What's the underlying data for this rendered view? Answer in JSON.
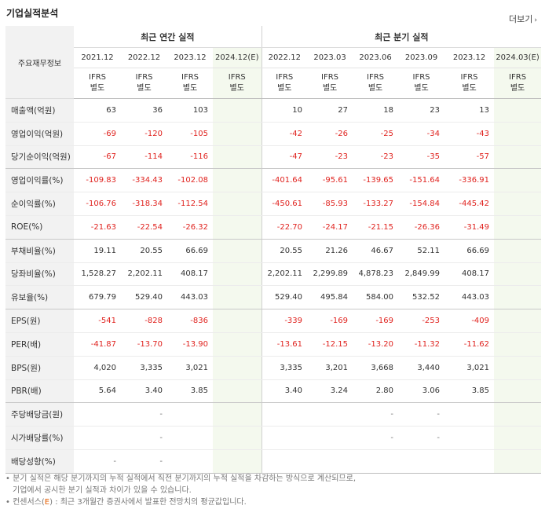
{
  "section_title": "기업실적분석",
  "more_label": "더보기",
  "more_arrow": "›",
  "label_header": "주요재무정보",
  "group_annual": "최근 연간 실적",
  "group_quarter": "최근 분기 실적",
  "periods": [
    {
      "label": "2021.12",
      "est": false
    },
    {
      "label": "2022.12",
      "est": false
    },
    {
      "label": "2023.12",
      "est": false
    },
    {
      "label": "2024.12(E)",
      "est": true
    },
    {
      "label": "2022.12",
      "est": false
    },
    {
      "label": "2023.03",
      "est": false
    },
    {
      "label": "2023.06",
      "est": false
    },
    {
      "label": "2023.09",
      "est": false
    },
    {
      "label": "2023.12",
      "est": false
    },
    {
      "label": "2024.03(E)",
      "est": true
    }
  ],
  "ifrs_line1": "IFRS",
  "ifrs_line2": "별도",
  "rows": [
    {
      "label": "매출액(억원)",
      "values": [
        "63",
        "36",
        "103",
        "",
        "10",
        "27",
        "18",
        "23",
        "13",
        ""
      ],
      "group_end": false
    },
    {
      "label": "영업이익(억원)",
      "values": [
        "-69",
        "-120",
        "-105",
        "",
        "-42",
        "-26",
        "-25",
        "-34",
        "-43",
        ""
      ],
      "group_end": false
    },
    {
      "label": "당기순이익(억원)",
      "values": [
        "-67",
        "-114",
        "-116",
        "",
        "-47",
        "-23",
        "-23",
        "-35",
        "-57",
        ""
      ],
      "group_end": true
    },
    {
      "label": "영업이익률(%)",
      "values": [
        "-109.83",
        "-334.43",
        "-102.08",
        "",
        "-401.64",
        "-95.61",
        "-139.65",
        "-151.64",
        "-336.91",
        ""
      ],
      "group_end": false
    },
    {
      "label": "순이익률(%)",
      "values": [
        "-106.76",
        "-318.34",
        "-112.54",
        "",
        "-450.61",
        "-85.93",
        "-133.27",
        "-154.84",
        "-445.42",
        ""
      ],
      "group_end": false
    },
    {
      "label": "ROE(%)",
      "values": [
        "-21.63",
        "-22.54",
        "-26.32",
        "",
        "-22.70",
        "-24.17",
        "-21.15",
        "-26.36",
        "-31.49",
        ""
      ],
      "group_end": true
    },
    {
      "label": "부채비율(%)",
      "values": [
        "19.11",
        "20.55",
        "66.69",
        "",
        "20.55",
        "21.26",
        "46.67",
        "52.11",
        "66.69",
        ""
      ],
      "group_end": false
    },
    {
      "label": "당좌비율(%)",
      "values": [
        "1,528.27",
        "2,202.11",
        "408.17",
        "",
        "2,202.11",
        "2,299.89",
        "4,878.23",
        "2,849.99",
        "408.17",
        ""
      ],
      "group_end": false
    },
    {
      "label": "유보율(%)",
      "values": [
        "679.79",
        "529.40",
        "443.03",
        "",
        "529.40",
        "495.84",
        "584.00",
        "532.52",
        "443.03",
        ""
      ],
      "group_end": true
    },
    {
      "label": "EPS(원)",
      "values": [
        "-541",
        "-828",
        "-836",
        "",
        "-339",
        "-169",
        "-169",
        "-253",
        "-409",
        ""
      ],
      "group_end": false
    },
    {
      "label": "PER(배)",
      "values": [
        "-41.87",
        "-13.70",
        "-13.90",
        "",
        "-13.61",
        "-12.15",
        "-13.20",
        "-11.32",
        "-11.62",
        ""
      ],
      "group_end": false
    },
    {
      "label": "BPS(원)",
      "values": [
        "4,020",
        "3,335",
        "3,021",
        "",
        "3,335",
        "3,201",
        "3,668",
        "3,440",
        "3,021",
        ""
      ],
      "group_end": false
    },
    {
      "label": "PBR(배)",
      "values": [
        "5.64",
        "3.40",
        "3.85",
        "",
        "3.40",
        "3.24",
        "2.80",
        "3.06",
        "3.85",
        ""
      ],
      "group_end": true
    },
    {
      "label": "주당배당금(원)",
      "values": [
        "",
        "-",
        "",
        "",
        "",
        "",
        "-",
        "-",
        "",
        ""
      ],
      "group_end": false
    },
    {
      "label": "시가배당률(%)",
      "values": [
        "",
        "-",
        "",
        "",
        "",
        "",
        "-",
        "-",
        "",
        ""
      ],
      "group_end": false
    },
    {
      "label": "배당성향(%)",
      "values": [
        "-",
        "-",
        "",
        "",
        "",
        "",
        "",
        "",
        "",
        ""
      ],
      "group_end": true
    }
  ],
  "notes": {
    "line1": "• 분기 실적은 해당 분기까지의 누적 실적에서 직전 분기까지의 누적 실적을 차감하는 방식으로 계산되므로,",
    "line2": "기업에서 공시한 분기 실적과 차이가 있을 수 있습니다.",
    "line3_prefix": "• 컨센서스(",
    "line3_e": "E",
    "line3_suffix": ") : 최근 3개월간 증권사에서 발표한 전망치의 평균값입니다."
  }
}
